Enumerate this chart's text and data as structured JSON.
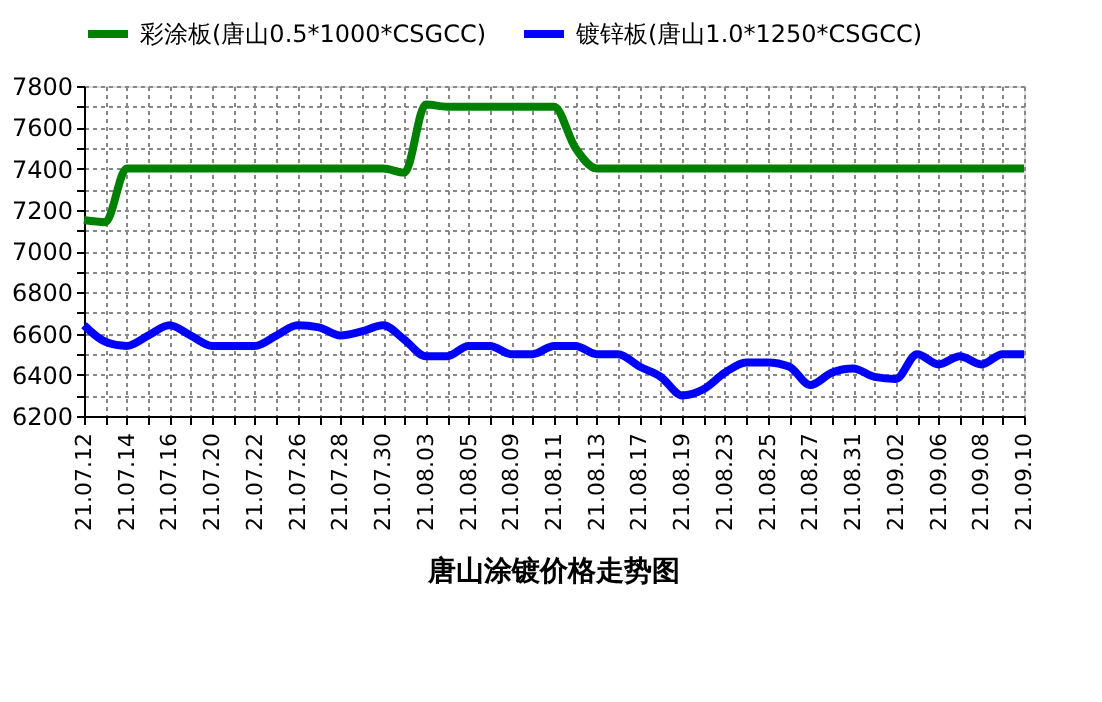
{
  "chart_data": {
    "type": "line",
    "title": "唐山涂镀价格走势图",
    "categories": [
      "21.07.12",
      null,
      "21.07.14",
      null,
      "21.07.16",
      null,
      "21.07.20",
      null,
      "21.07.22",
      null,
      "21.07.26",
      null,
      "21.07.28",
      null,
      "21.07.30",
      null,
      "21.08.03",
      null,
      "21.08.05",
      null,
      "21.08.09",
      null,
      "21.08.11",
      null,
      "21.08.13",
      null,
      "21.08.17",
      null,
      "21.08.19",
      null,
      "21.08.23",
      null,
      "21.08.25",
      null,
      "21.08.27",
      null,
      "21.08.31",
      null,
      "21.09.02",
      null,
      "21.09.06",
      null,
      "21.09.08",
      null,
      "21.09.10"
    ],
    "series": [
      {
        "name": "彩涂板(唐山0.5*1000*CSGCC)",
        "color": "#008000",
        "values": [
          7150,
          7140,
          7400,
          7400,
          7400,
          7400,
          7400,
          7400,
          7400,
          7400,
          7400,
          7400,
          7400,
          7400,
          7400,
          7380,
          7710,
          7700,
          7700,
          7700,
          7700,
          7700,
          7700,
          7500,
          7400,
          7400,
          7400,
          7400,
          7400,
          7400,
          7400,
          7400,
          7400,
          7400,
          7400,
          7400,
          7400,
          7400,
          7400,
          7400,
          7400,
          7400,
          7400,
          7400,
          7400
        ]
      },
      {
        "name": "镀锌板(唐山1.0*1250*CSGCC)",
        "color": "#0000ff",
        "values": [
          6640,
          6560,
          6540,
          6590,
          6640,
          6590,
          6540,
          6540,
          6540,
          6590,
          6640,
          6630,
          6590,
          6610,
          6640,
          6570,
          6490,
          6490,
          6540,
          6540,
          6500,
          6500,
          6540,
          6540,
          6500,
          6500,
          6440,
          6390,
          6300,
          6330,
          6410,
          6460,
          6460,
          6440,
          6350,
          6410,
          6430,
          6390,
          6380,
          6500,
          6450,
          6490,
          6450,
          6500,
          6500
        ]
      }
    ],
    "ylim": [
      6200,
      7800
    ],
    "yticks": [
      6200,
      {
        "value": 6300,
        "label": null
      },
      6400,
      {
        "value": 6500,
        "label": null
      },
      6600,
      {
        "value": 6700,
        "label": null
      },
      6800,
      {
        "value": 6900,
        "label": null
      },
      7000,
      {
        "value": 7100,
        "label": null
      },
      7200,
      {
        "value": 7300,
        "label": null
      },
      7400,
      {
        "value": 7500,
        "label": null
      },
      7600,
      {
        "value": 7700,
        "label": null
      },
      7800
    ],
    "grid": true,
    "legend": "top",
    "marker": "none",
    "line_style": "solid"
  }
}
